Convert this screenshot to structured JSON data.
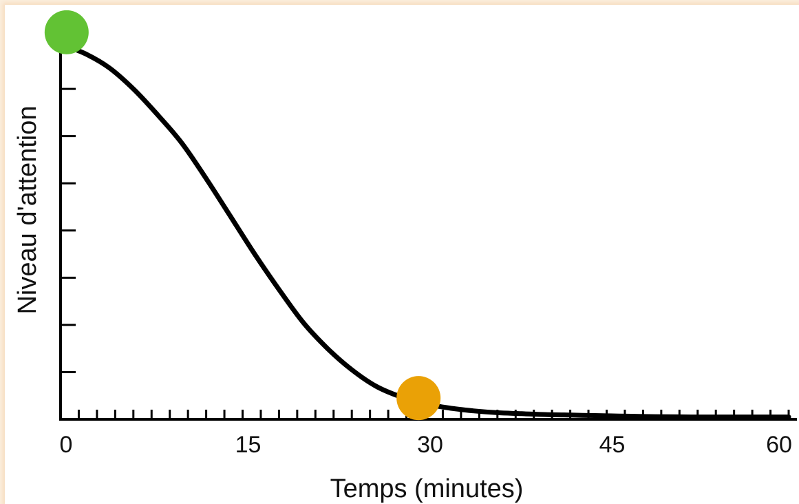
{
  "chart_data": {
    "type": "line",
    "title": "",
    "xlabel": "Temps (minutes)",
    "ylabel": "Niveau d'attention",
    "xlim": [
      0,
      60
    ],
    "ylim": [
      0,
      8.3
    ],
    "x_ticks": [
      "0",
      "15",
      "30",
      "45",
      "60"
    ],
    "y_tick_count": 8,
    "grid": false,
    "series": [
      {
        "color": "#000000",
        "x": [
          0,
          2,
          4,
          6,
          8,
          10,
          12,
          14,
          16,
          18,
          20,
          22,
          24,
          26,
          28,
          30,
          32,
          34,
          36,
          38,
          40,
          42,
          44,
          46,
          48,
          50,
          52,
          54,
          56,
          58,
          60
        ],
        "y": [
          7.95,
          7.75,
          7.45,
          7.0,
          6.45,
          5.85,
          5.1,
          4.3,
          3.5,
          2.75,
          2.05,
          1.5,
          1.05,
          0.7,
          0.48,
          0.33,
          0.24,
          0.18,
          0.14,
          0.12,
          0.1,
          0.09,
          0.08,
          0.07,
          0.06,
          0.055,
          0.05,
          0.05,
          0.05,
          0.05,
          0.05
        ]
      }
    ],
    "markers": [
      {
        "x": 0.5,
        "y": 8.2,
        "color": "#62c234"
      },
      {
        "x": 29.5,
        "y": 0.45,
        "color": "#eaa106"
      }
    ]
  }
}
